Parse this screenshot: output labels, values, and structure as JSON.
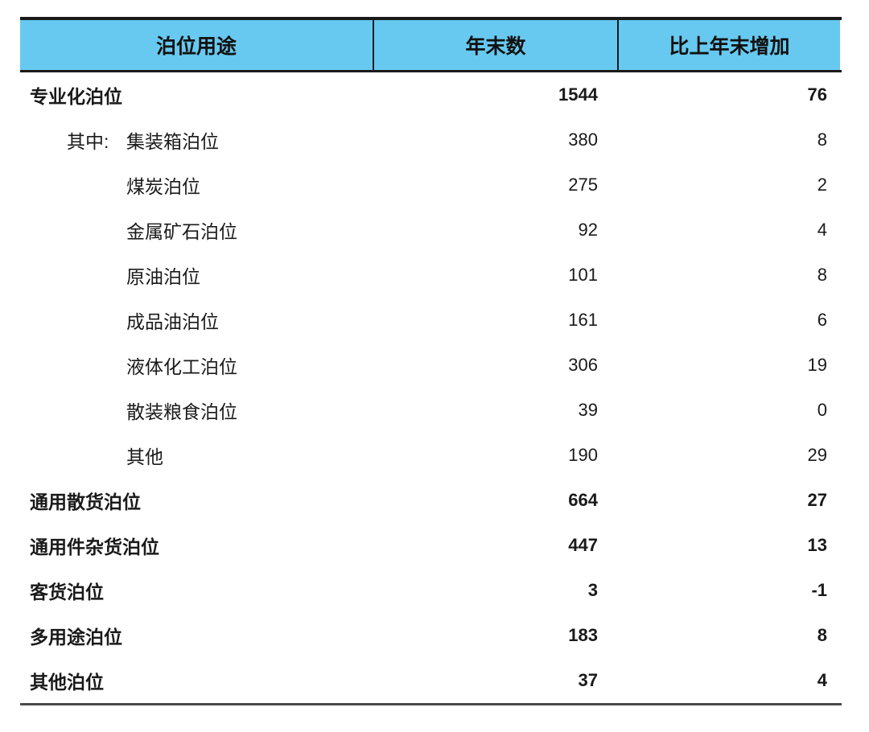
{
  "colors": {
    "header_bg": "#67C9F0",
    "border_dark": "#1a1a1a",
    "border_bottom": "#4a4a4a",
    "text": "#1a1a1a",
    "page_bg": "#ffffff"
  },
  "table": {
    "columns": [
      {
        "label": "泊位用途"
      },
      {
        "label": "年末数"
      },
      {
        "label": "比上年末增加"
      }
    ],
    "among_which_prefix": "其中:",
    "rows": [
      {
        "label": "专业化泊位",
        "prefix": "",
        "level": 0,
        "bold": true,
        "year_end": "1544",
        "increase": "76"
      },
      {
        "label": "集装箱泊位",
        "prefix": "其中:",
        "level": 1,
        "bold": false,
        "year_end": "380",
        "increase": "8"
      },
      {
        "label": "煤炭泊位",
        "prefix": "",
        "level": 1,
        "bold": false,
        "year_end": "275",
        "increase": "2"
      },
      {
        "label": "金属矿石泊位",
        "prefix": "",
        "level": 1,
        "bold": false,
        "year_end": "92",
        "increase": "4"
      },
      {
        "label": "原油泊位",
        "prefix": "",
        "level": 1,
        "bold": false,
        "year_end": "101",
        "increase": "8"
      },
      {
        "label": "成品油泊位",
        "prefix": "",
        "level": 1,
        "bold": false,
        "year_end": "161",
        "increase": "6"
      },
      {
        "label": "液体化工泊位",
        "prefix": "",
        "level": 1,
        "bold": false,
        "year_end": "306",
        "increase": "19"
      },
      {
        "label": "散装粮食泊位",
        "prefix": "",
        "level": 1,
        "bold": false,
        "year_end": "39",
        "increase": "0"
      },
      {
        "label": "其他",
        "prefix": "",
        "level": 1,
        "bold": false,
        "year_end": "190",
        "increase": "29"
      },
      {
        "label": "通用散货泊位",
        "prefix": "",
        "level": 0,
        "bold": true,
        "year_end": "664",
        "increase": "27"
      },
      {
        "label": "通用件杂货泊位",
        "prefix": "",
        "level": 0,
        "bold": true,
        "year_end": "447",
        "increase": "13"
      },
      {
        "label": "客货泊位",
        "prefix": "",
        "level": 0,
        "bold": true,
        "year_end": "3",
        "increase": "-1"
      },
      {
        "label": "多用途泊位",
        "prefix": "",
        "level": 0,
        "bold": true,
        "year_end": "183",
        "increase": "8"
      },
      {
        "label": "其他泊位",
        "prefix": "",
        "level": 0,
        "bold": true,
        "year_end": "37",
        "increase": "4"
      }
    ]
  }
}
